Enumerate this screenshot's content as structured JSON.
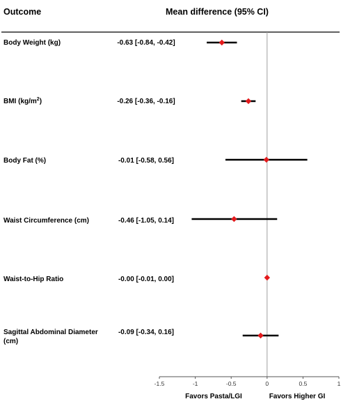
{
  "chart_data": {
    "type": "forest",
    "headers": {
      "outcome": "Outcome",
      "estimate": "Mean difference (95% CI)"
    },
    "rows": [
      {
        "outcome": [
          "Body Weight (kg)"
        ],
        "est": -0.63,
        "lo": -0.84,
        "hi": -0.42,
        "label": "-0.63 [-0.84, -0.42]"
      },
      {
        "outcome": [
          "BMI (kg/m",
          "2",
          ")"
        ],
        "est": -0.26,
        "lo": -0.36,
        "hi": -0.16,
        "label": "-0.26 [-0.36, -0.16]"
      },
      {
        "outcome": [
          "Body Fat (%)"
        ],
        "est": -0.01,
        "lo": -0.58,
        "hi": 0.56,
        "label": "-0.01 [-0.58, 0.56]"
      },
      {
        "outcome": [
          "Waist Circumference (cm)"
        ],
        "est": -0.46,
        "lo": -1.05,
        "hi": 0.14,
        "label": "-0.46 [-1.05, 0.14]"
      },
      {
        "outcome": [
          "Waist-to-Hip Ratio"
        ],
        "est": 0.0,
        "lo": -0.01,
        "hi": 0.0,
        "label": "-0.00 [-0.01, 0.00]"
      },
      {
        "outcome": [
          "Sagittal Abdominal Diameter",
          "(cm)"
        ],
        "est": -0.09,
        "lo": -0.34,
        "hi": 0.16,
        "label": "-0.09 [-0.34, 0.16]"
      }
    ],
    "x_ticks": [
      -1.5,
      -1,
      -0.5,
      0,
      0.5,
      1
    ],
    "x_tick_labels": [
      "-1.5",
      "-1",
      "-0.5",
      "0",
      "0.5",
      "1"
    ],
    "xlim": [
      -1.5,
      1
    ],
    "favors_left": "Favors Pasta/LGI",
    "favors_right": "Favors Higher GI",
    "colors": {
      "marker": "#e31a1c",
      "ci_line": "#000000",
      "ref_line": "#a0a0a0"
    }
  }
}
